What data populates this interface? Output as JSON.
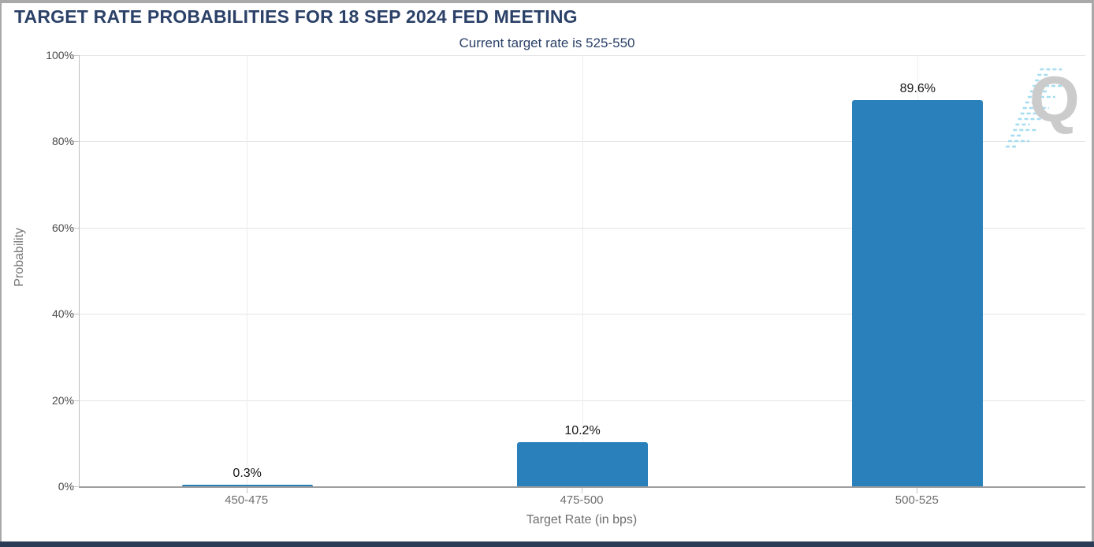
{
  "header": {
    "title": "TARGET RATE PROBABILITIES FOR 18 SEP 2024 FED MEETING"
  },
  "chart_data": {
    "type": "bar",
    "title": "TARGET RATE PROBABILITIES FOR 18 SEP 2024 FED MEETING",
    "subtitle": "Current target rate is 525-550",
    "categories": [
      "450-475",
      "475-500",
      "500-525"
    ],
    "values": [
      0.3,
      10.2,
      89.6
    ],
    "value_labels": [
      "0.3%",
      "10.2%",
      "89.6%"
    ],
    "xlabel": "Target Rate (in bps)",
    "ylabel": "Probability",
    "ylim": [
      0,
      100
    ],
    "yticks": [
      "0%",
      "20%",
      "40%",
      "60%",
      "80%",
      "100%"
    ],
    "grid": "horizontal gridlines at 20% steps plus faint vertical gridline at each category center",
    "legend": "none",
    "bar_color": "#2980ba"
  },
  "watermark": {
    "letter": "Q",
    "letter_color": "#cbcbcb",
    "dash_color": "#a6ddf0"
  },
  "colors": {
    "title_text": "#2b4168",
    "bar": "#2980ba",
    "axis_label_text": "#6e6e6e",
    "value_label_text": "#151515",
    "gridline": "#e5e5e5",
    "frame_border": "#a9a9a9",
    "bottom_strip": "#2b3b55"
  }
}
